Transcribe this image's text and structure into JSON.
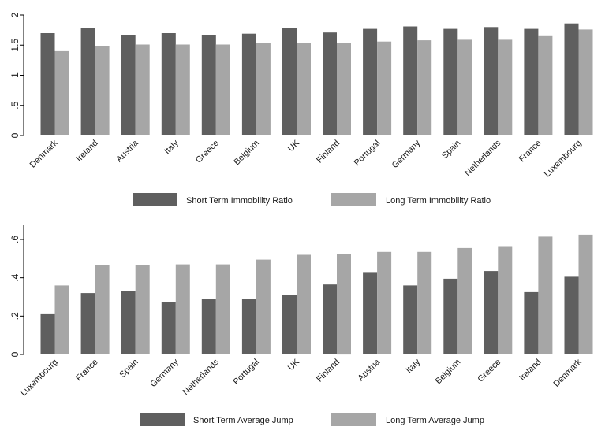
{
  "colors": {
    "short_term": "#5f5f5f",
    "long_term": "#a6a6a6",
    "axis": "#000000",
    "background": "#ffffff"
  },
  "chart_data": [
    {
      "type": "bar",
      "categories": [
        "Denmark",
        "Ireland",
        "Austria",
        "Italy",
        "Greece",
        "Belgium",
        "UK",
        "Finland",
        "Portugal",
        "Germany",
        "Spain",
        "Netherlands",
        "France",
        "Luxembourg"
      ],
      "series": [
        {
          "name": "Short Term Immobility Ratio",
          "values": [
            1.7,
            1.78,
            1.67,
            1.7,
            1.66,
            1.69,
            1.79,
            1.71,
            1.77,
            1.81,
            1.77,
            1.8,
            1.77,
            1.86
          ]
        },
        {
          "name": "Long Term Immobility Ratio",
          "values": [
            1.4,
            1.48,
            1.51,
            1.51,
            1.51,
            1.53,
            1.54,
            1.54,
            1.56,
            1.58,
            1.59,
            1.59,
            1.65,
            1.76
          ]
        }
      ],
      "ylim": [
        0,
        2
      ],
      "yticks": [
        0,
        0.5,
        1,
        1.5,
        2
      ],
      "ytick_labels": [
        "0",
        ".5",
        "1",
        "1.5",
        "2"
      ],
      "grid": false,
      "legend_position": "bottom"
    },
    {
      "type": "bar",
      "categories": [
        "Luxembourg",
        "France",
        "Spain",
        "Germany",
        "Netherlands",
        "Portugal",
        "UK",
        "Finland",
        "Austria",
        "Italy",
        "Belgium",
        "Greece",
        "Ireland",
        "Denmark"
      ],
      "series": [
        {
          "name": "Short Term Average Jump",
          "values": [
            0.21,
            0.32,
            0.33,
            0.275,
            0.29,
            0.29,
            0.31,
            0.365,
            0.43,
            0.36,
            0.395,
            0.435,
            0.325,
            0.405
          ]
        },
        {
          "name": "Long Term Average Jump",
          "values": [
            0.36,
            0.465,
            0.465,
            0.47,
            0.47,
            0.495,
            0.52,
            0.525,
            0.535,
            0.535,
            0.555,
            0.565,
            0.615,
            0.625
          ]
        }
      ],
      "ylim": [
        0,
        0.7
      ],
      "yticks": [
        0,
        0.2,
        0.4,
        0.6
      ],
      "ytick_labels": [
        "0",
        ".2",
        ".4",
        ".6"
      ],
      "grid": false,
      "legend_position": "bottom"
    }
  ]
}
